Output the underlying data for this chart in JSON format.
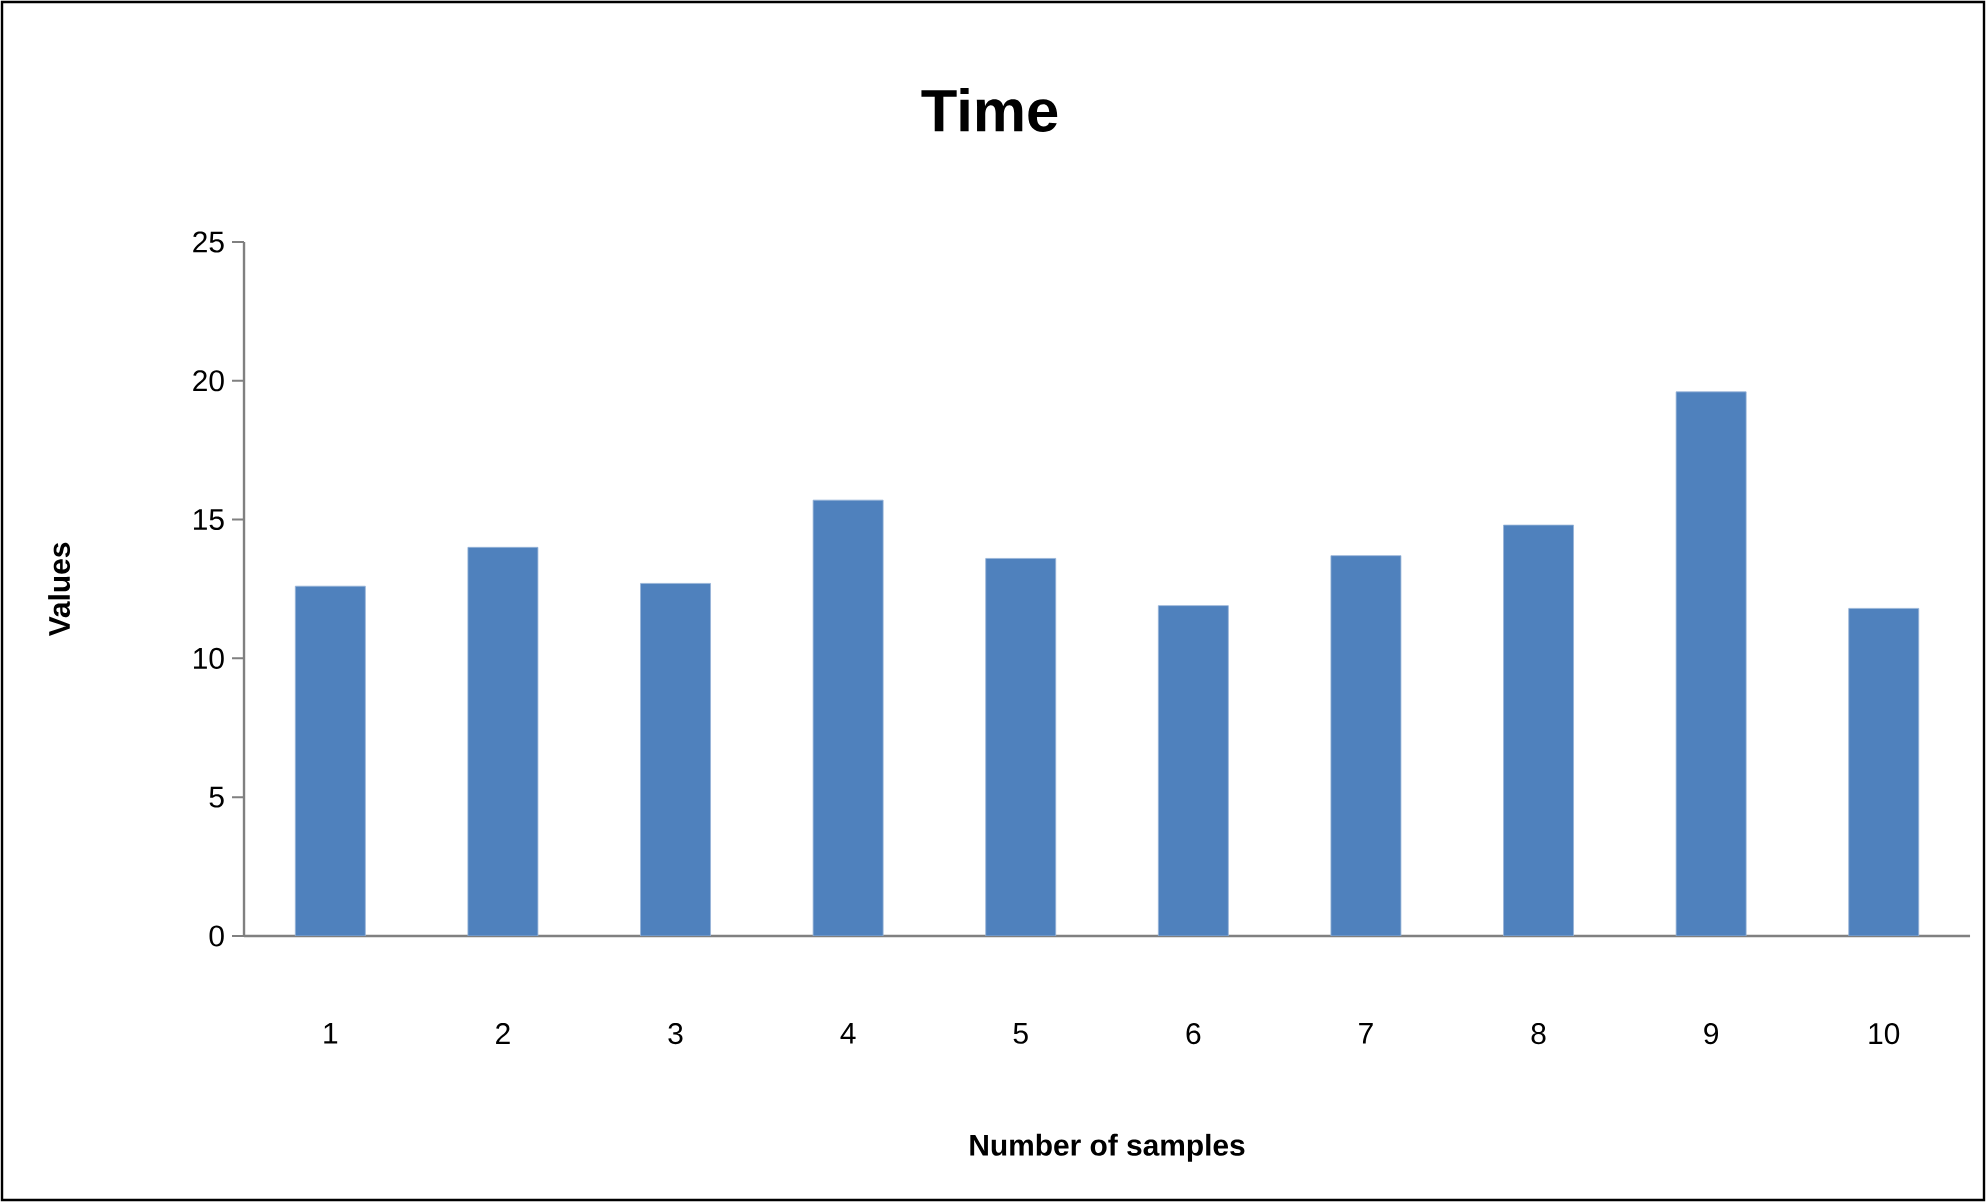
{
  "chart_data": {
    "type": "bar",
    "title": "Time",
    "xlabel": "Number of samples",
    "ylabel": "Values",
    "categories": [
      "1",
      "2",
      "3",
      "4",
      "5",
      "6",
      "7",
      "8",
      "9",
      "10"
    ],
    "values": [
      12.6,
      14.0,
      12.7,
      15.7,
      13.6,
      11.9,
      13.7,
      14.8,
      19.6,
      11.8
    ],
    "color": "#4f81bd",
    "ylim": [
      0,
      25
    ],
    "yticks": [
      0,
      5,
      10,
      15,
      20,
      25
    ]
  }
}
